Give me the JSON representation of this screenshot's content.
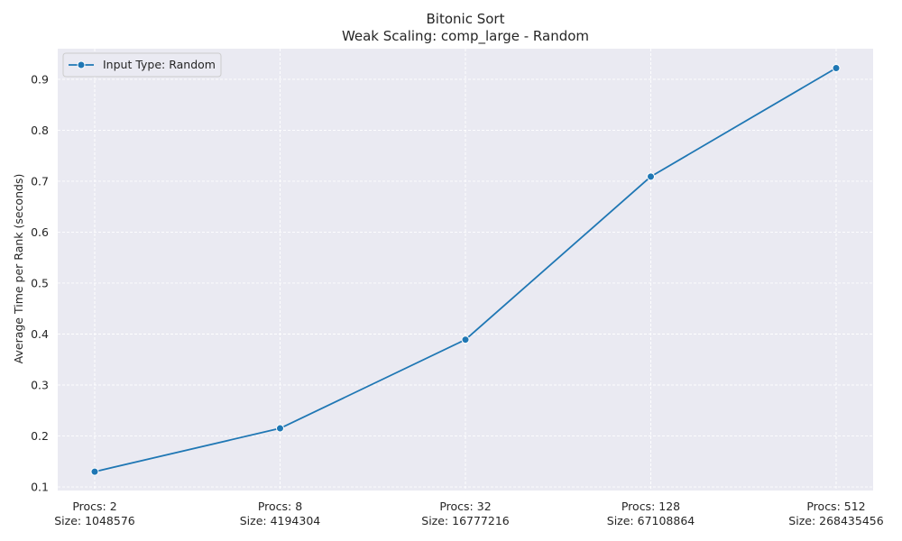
{
  "chart_data": {
    "type": "line",
    "title": "Bitonic Sort",
    "subtitle": "Weak Scaling: comp_large - Random",
    "xlabel": "",
    "ylabel": "Average Time per Rank (seconds)",
    "categories": [
      [
        "Procs: 2",
        "Size: 1048576"
      ],
      [
        "Procs: 8",
        "Size: 4194304"
      ],
      [
        "Procs: 32",
        "Size: 16777216"
      ],
      [
        "Procs: 128",
        "Size: 67108864"
      ],
      [
        "Procs: 512",
        "Size: 268435456"
      ]
    ],
    "series": [
      {
        "name": "Input Type: Random",
        "values": [
          0.13,
          0.215,
          0.389,
          0.709,
          0.922
        ],
        "color": "#1f77b4"
      }
    ],
    "ylim": [
      0.093,
      0.96
    ],
    "yticks": [
      0.1,
      0.2,
      0.3,
      0.4,
      0.5,
      0.6,
      0.7,
      0.8,
      0.9
    ],
    "grid": true,
    "legend_position": "top-left",
    "background": "#eaeaf2",
    "grid_color": "#ffffff"
  }
}
